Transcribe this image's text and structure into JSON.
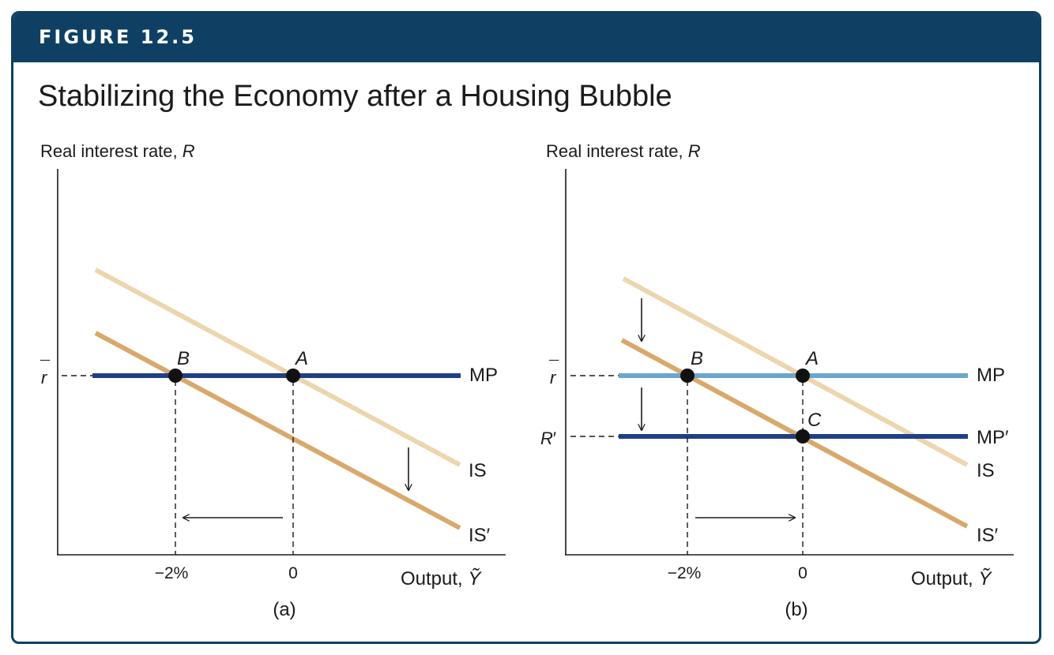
{
  "figure": {
    "label": "FIGURE 12.5",
    "title": "Stabilizing the Economy after a Housing Bubble"
  },
  "colors": {
    "header": "#0f4064",
    "mp_dark": "#1f3f87",
    "mp_light": "#6aa6cf",
    "is_light": "#edd5ad",
    "is_dark": "#d9a86c"
  },
  "panels": [
    {
      "id": "a",
      "caption": "(a)",
      "y_axis_label": "Real interest rate,",
      "y_axis_var": "R",
      "x_axis_label": "Output,",
      "x_axis_var": "Ỹ",
      "x_ticks": [
        "−2%",
        "0"
      ],
      "y_ticks": [
        {
          "base": "r",
          "accent": "¯",
          "prime": ""
        }
      ],
      "curves": [
        {
          "id": "IS",
          "label": "IS"
        },
        {
          "id": "IS_prime",
          "label": "IS′"
        },
        {
          "id": "MP",
          "label": "MP"
        }
      ],
      "points": [
        "B",
        "A"
      ]
    },
    {
      "id": "b",
      "caption": "(b)",
      "y_axis_label": "Real interest rate,",
      "y_axis_var": "R",
      "x_axis_label": "Output,",
      "x_axis_var": "Ỹ",
      "x_ticks": [
        "−2%",
        "0"
      ],
      "y_ticks": [
        {
          "base": "r",
          "accent": "¯",
          "prime": ""
        },
        {
          "base": "R",
          "accent": "",
          "prime": "′"
        }
      ],
      "curves": [
        {
          "id": "MP",
          "label": "MP"
        },
        {
          "id": "MP_prime",
          "label": "MP′"
        },
        {
          "id": "IS",
          "label": "IS"
        },
        {
          "id": "IS_prime",
          "label": "IS′"
        }
      ],
      "points": [
        "B",
        "A",
        "C"
      ]
    }
  ]
}
